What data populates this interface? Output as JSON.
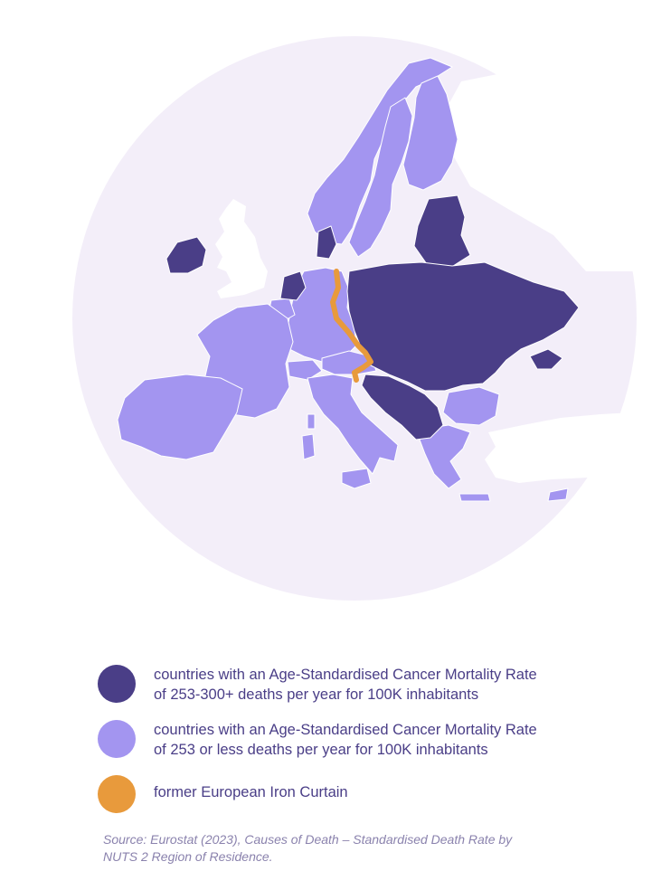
{
  "colors": {
    "high_rate": "#4a3e87",
    "low_rate": "#a395f0",
    "iron_curtain": "#e89a3c",
    "background_circle": "#f3eef9",
    "non_data_land": "#ffffff",
    "legend_text": "#4a3e87",
    "source_text": "#8a82ad"
  },
  "legend": {
    "items": [
      {
        "swatch": "high_rate",
        "line1": "countries with an Age-Standardised Cancer Mortality Rate",
        "line2": "of 253-300+ deaths per year for 100K inhabitants"
      },
      {
        "swatch": "low_rate",
        "line1": "countries with an Age-Standardised Cancer Mortality Rate",
        "line2": "of 253 or less deaths per year for 100K inhabitants"
      },
      {
        "swatch": "iron_curtain",
        "line1": "former European Iron Curtain"
      }
    ]
  },
  "source": {
    "line1": "Source: Eurostat (2023), Causes of Death – Standardised Death Rate by",
    "line2": "NUTS 2 Region of Residence."
  },
  "map": {
    "high_rate_countries": [
      "Estonia",
      "Latvia",
      "Lithuania",
      "Poland",
      "Belarus",
      "Ukraine",
      "Moldova",
      "Czechia",
      "Slovakia",
      "Hungary",
      "Romania",
      "Slovenia",
      "Croatia",
      "Bosnia and Herzegovina",
      "Serbia",
      "Montenegro",
      "North Macedonia",
      "Denmark",
      "Netherlands",
      "Ireland"
    ],
    "low_rate_countries": [
      "Norway",
      "Sweden",
      "Finland",
      "Germany",
      "France",
      "Spain",
      "Portugal",
      "Italy",
      "Austria",
      "Switzerland",
      "Belgium",
      "Luxembourg",
      "Bulgaria",
      "Greece",
      "Albania",
      "Cyprus"
    ],
    "no_data_countries": [
      "United Kingdom",
      "Iceland",
      "Turkey",
      "Russia"
    ]
  }
}
